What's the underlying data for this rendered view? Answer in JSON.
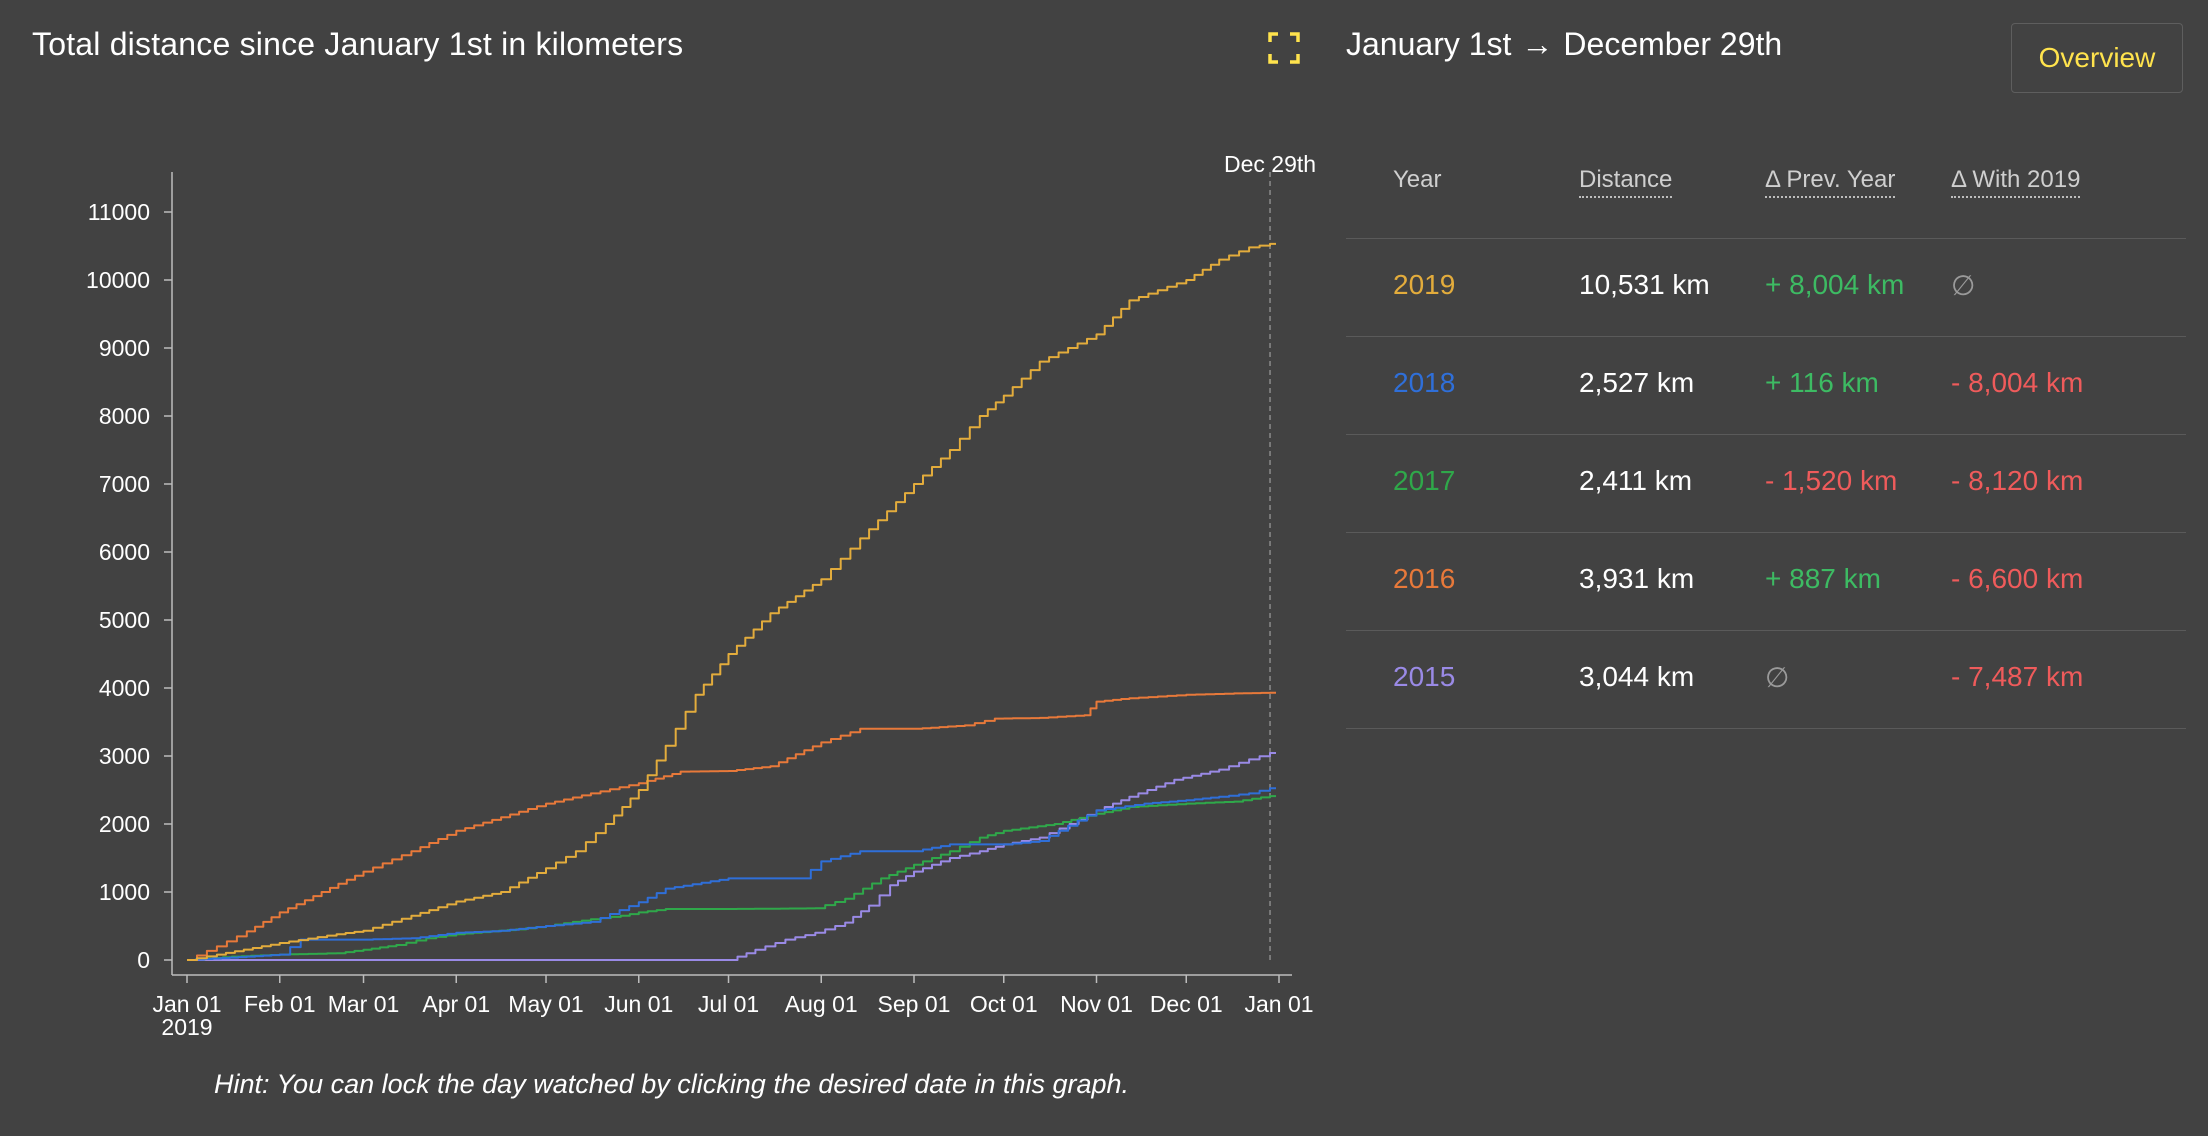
{
  "header": {
    "title_pre": "Total ",
    "title_bold": "distance",
    "title_post": " since January 1st in kilometers",
    "range_from": "January 1st",
    "range_arrow": "→",
    "range_to": "December 29th",
    "overview_label": "Overview"
  },
  "colors": {
    "2019": "#e3ac3c",
    "2018": "#2f6fd9",
    "2017": "#2fa84a",
    "2016": "#e8793a",
    "2015": "#9a8ae6",
    "accent": "#ffe34d"
  },
  "icons": {
    "fullscreen": "fullscreen-corners-icon"
  },
  "hint": "Hint: You can lock the day watched by clicking the desired date in this graph.",
  "table": {
    "headers": [
      "Year",
      "Distance",
      "Δ Prev. Year",
      "Δ With 2019"
    ],
    "rows": [
      {
        "year": "2019",
        "distance": "10,531 km",
        "prev": "+ 8,004 km",
        "prev_sign": "pos",
        "vs2019": "∅",
        "vs2019_sign": "none"
      },
      {
        "year": "2018",
        "distance": "2,527 km",
        "prev": "+ 116 km",
        "prev_sign": "pos",
        "vs2019": "- 8,004 km",
        "vs2019_sign": "neg"
      },
      {
        "year": "2017",
        "distance": "2,411 km",
        "prev": "- 1,520 km",
        "prev_sign": "neg",
        "vs2019": "- 8,120 km",
        "vs2019_sign": "neg"
      },
      {
        "year": "2016",
        "distance": "3,931 km",
        "prev": "+ 887 km",
        "prev_sign": "pos",
        "vs2019": "- 6,600 km",
        "vs2019_sign": "neg"
      },
      {
        "year": "2015",
        "distance": "3,044 km",
        "prev": "∅",
        "prev_sign": "none",
        "vs2019": "- 7,487 km",
        "vs2019_sign": "neg"
      }
    ]
  },
  "chart_data": {
    "type": "line",
    "title": "Total distance since January 1st in kilometers",
    "x_ticks": [
      "Jan 01",
      "Feb 01",
      "Mar 01",
      "Apr 01",
      "May 01",
      "Jun 01",
      "Jul 01",
      "Aug 01",
      "Sep 01",
      "Oct 01",
      "Nov 01",
      "Dec 01",
      "Jan 01"
    ],
    "x_tick_days": [
      0,
      31,
      59,
      90,
      120,
      151,
      181,
      212,
      243,
      273,
      304,
      334,
      365
    ],
    "x_sublabel": "2019",
    "y_ticks": [
      0,
      1000,
      2000,
      3000,
      4000,
      5000,
      6000,
      7000,
      8000,
      9000,
      10000,
      11000
    ],
    "ylim": [
      -200,
      11600
    ],
    "xlim": [
      -5,
      370
    ],
    "grid": false,
    "marker_label": "Dec 29th",
    "marker_day": 362,
    "x_unit": "day of year (Jan 1 = 0)",
    "series": [
      {
        "name": "2019",
        "points": [
          [
            0,
            0
          ],
          [
            10,
            80
          ],
          [
            31,
            250
          ],
          [
            50,
            380
          ],
          [
            59,
            430
          ],
          [
            75,
            650
          ],
          [
            90,
            860
          ],
          [
            105,
            1000
          ],
          [
            120,
            1350
          ],
          [
            130,
            1600
          ],
          [
            140,
            2000
          ],
          [
            151,
            2500
          ],
          [
            160,
            3150
          ],
          [
            170,
            3900
          ],
          [
            181,
            4500
          ],
          [
            195,
            5100
          ],
          [
            212,
            5600
          ],
          [
            225,
            6200
          ],
          [
            243,
            7000
          ],
          [
            255,
            7500
          ],
          [
            265,
            8000
          ],
          [
            273,
            8300
          ],
          [
            285,
            8800
          ],
          [
            304,
            9200
          ],
          [
            315,
            9700
          ],
          [
            334,
            10000
          ],
          [
            345,
            10300
          ],
          [
            355,
            10480
          ],
          [
            362,
            10531
          ]
        ]
      },
      {
        "name": "2018",
        "points": [
          [
            0,
            0
          ],
          [
            20,
            50
          ],
          [
            31,
            80
          ],
          [
            38,
            300
          ],
          [
            59,
            300
          ],
          [
            75,
            320
          ],
          [
            90,
            400
          ],
          [
            105,
            430
          ],
          [
            120,
            500
          ],
          [
            135,
            560
          ],
          [
            151,
            850
          ],
          [
            160,
            1050
          ],
          [
            181,
            1200
          ],
          [
            205,
            1200
          ],
          [
            212,
            1450
          ],
          [
            225,
            1600
          ],
          [
            243,
            1600
          ],
          [
            255,
            1700
          ],
          [
            273,
            1700
          ],
          [
            285,
            1750
          ],
          [
            304,
            2200
          ],
          [
            320,
            2300
          ],
          [
            334,
            2350
          ],
          [
            345,
            2400
          ],
          [
            355,
            2450
          ],
          [
            362,
            2527
          ]
        ]
      },
      {
        "name": "2017",
        "points": [
          [
            0,
            0
          ],
          [
            15,
            50
          ],
          [
            31,
            80
          ],
          [
            50,
            100
          ],
          [
            59,
            150
          ],
          [
            70,
            220
          ],
          [
            80,
            320
          ],
          [
            90,
            380
          ],
          [
            110,
            450
          ],
          [
            120,
            500
          ],
          [
            135,
            600
          ],
          [
            145,
            650
          ],
          [
            151,
            700
          ],
          [
            160,
            750
          ],
          [
            181,
            750
          ],
          [
            210,
            760
          ],
          [
            220,
            900
          ],
          [
            232,
            1200
          ],
          [
            243,
            1400
          ],
          [
            255,
            1600
          ],
          [
            265,
            1800
          ],
          [
            273,
            1900
          ],
          [
            290,
            2000
          ],
          [
            304,
            2150
          ],
          [
            315,
            2250
          ],
          [
            334,
            2300
          ],
          [
            350,
            2330
          ],
          [
            362,
            2411
          ]
        ]
      },
      {
        "name": "2016",
        "points": [
          [
            0,
            0
          ],
          [
            10,
            200
          ],
          [
            20,
            420
          ],
          [
            31,
            700
          ],
          [
            45,
            1000
          ],
          [
            59,
            1300
          ],
          [
            75,
            1600
          ],
          [
            90,
            1900
          ],
          [
            105,
            2100
          ],
          [
            120,
            2300
          ],
          [
            135,
            2450
          ],
          [
            151,
            2600
          ],
          [
            165,
            2770
          ],
          [
            181,
            2780
          ],
          [
            195,
            2850
          ],
          [
            212,
            3200
          ],
          [
            225,
            3400
          ],
          [
            243,
            3400
          ],
          [
            260,
            3450
          ],
          [
            270,
            3550
          ],
          [
            285,
            3560
          ],
          [
            300,
            3600
          ],
          [
            304,
            3800
          ],
          [
            315,
            3850
          ],
          [
            334,
            3900
          ],
          [
            350,
            3920
          ],
          [
            362,
            3931
          ]
        ]
      },
      {
        "name": "2015",
        "points": [
          [
            0,
            0
          ],
          [
            100,
            0
          ],
          [
            181,
            0
          ],
          [
            190,
            150
          ],
          [
            200,
            300
          ],
          [
            210,
            400
          ],
          [
            220,
            550
          ],
          [
            228,
            800
          ],
          [
            235,
            1100
          ],
          [
            243,
            1300
          ],
          [
            255,
            1500
          ],
          [
            265,
            1600
          ],
          [
            273,
            1700
          ],
          [
            285,
            1800
          ],
          [
            295,
            2000
          ],
          [
            304,
            2200
          ],
          [
            315,
            2400
          ],
          [
            330,
            2650
          ],
          [
            345,
            2800
          ],
          [
            355,
            2950
          ],
          [
            362,
            3044
          ]
        ]
      }
    ]
  }
}
